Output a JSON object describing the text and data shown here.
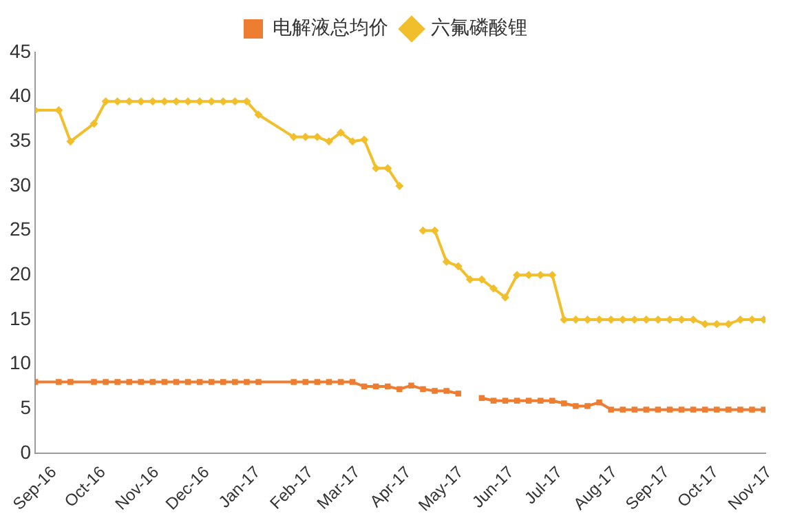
{
  "chart_data": {
    "type": "line",
    "legend": "top",
    "grid": false,
    "xlim": [
      "2016-09-01",
      "2017-11-10"
    ],
    "ylim": [
      0,
      45
    ],
    "yticks": [
      0,
      5,
      10,
      15,
      20,
      25,
      30,
      35,
      40,
      45
    ],
    "xticks": [
      {
        "value": "2016-09",
        "label": "Sep-16"
      },
      {
        "value": "2016-10",
        "label": "Oct-16"
      },
      {
        "value": "2016-11",
        "label": "Nov-16"
      },
      {
        "value": "2016-12",
        "label": "Dec-16"
      },
      {
        "value": "2017-01",
        "label": "Jan-17"
      },
      {
        "value": "2017-02",
        "label": "Feb-17"
      },
      {
        "value": "2017-03",
        "label": "Mar-17"
      },
      {
        "value": "2017-04",
        "label": "Apr-17"
      },
      {
        "value": "2017-05",
        "label": "May-17"
      },
      {
        "value": "2017-06",
        "label": "Jun-17"
      },
      {
        "value": "2017-07",
        "label": "Jul-17"
      },
      {
        "value": "2017-08",
        "label": "Aug-17"
      },
      {
        "value": "2017-09",
        "label": "Sep-17"
      },
      {
        "value": "2017-10",
        "label": "Oct-17"
      },
      {
        "value": "2017-11",
        "label": "Nov-17"
      }
    ],
    "series": [
      {
        "name": "电解液总均价",
        "color": "#ed7d31",
        "marker": "square",
        "x": [
          "2016-09-01",
          "2016-09-15",
          "2016-09-22",
          "2016-10-06",
          "2016-10-13",
          "2016-10-20",
          "2016-10-27",
          "2016-11-03",
          "2016-11-10",
          "2016-11-17",
          "2016-11-24",
          "2016-12-01",
          "2016-12-08",
          "2016-12-15",
          "2016-12-22",
          "2016-12-29",
          "2017-01-05",
          "2017-01-12",
          "2017-02-02",
          "2017-02-09",
          "2017-02-16",
          "2017-02-23",
          "2017-03-02",
          "2017-03-09",
          "2017-03-16",
          "2017-03-23",
          "2017-03-30",
          "2017-04-06",
          "2017-04-13",
          "2017-04-20",
          "2017-04-27",
          "2017-05-04",
          "2017-05-11",
          "2017-05-18",
          "2017-05-25",
          "2017-06-01",
          "2017-06-08",
          "2017-06-15",
          "2017-06-22",
          "2017-06-29",
          "2017-07-06",
          "2017-07-13",
          "2017-07-20",
          "2017-07-27",
          "2017-08-03",
          "2017-08-10",
          "2017-08-17",
          "2017-08-24",
          "2017-08-31",
          "2017-09-07",
          "2017-09-14",
          "2017-09-21",
          "2017-09-28",
          "2017-10-05",
          "2017-10-12",
          "2017-10-19",
          "2017-10-26",
          "2017-11-02",
          "2017-11-09"
        ],
        "values": [
          8,
          8,
          8,
          8,
          8,
          8,
          8,
          8,
          8,
          8,
          8,
          8,
          8,
          8,
          8,
          8,
          8,
          8,
          8,
          8,
          8,
          8,
          8,
          8,
          7.5,
          7.5,
          7.5,
          7.2,
          7.6,
          7.2,
          7.0,
          7.0,
          6.7,
          null,
          6.2,
          5.9,
          5.9,
          5.9,
          5.9,
          5.9,
          5.9,
          5.6,
          5.3,
          5.3,
          5.7,
          4.9,
          4.9,
          4.9,
          4.9,
          4.9,
          4.9,
          4.9,
          4.9,
          4.9,
          4.9,
          4.9,
          4.9,
          4.9,
          4.9
        ]
      },
      {
        "name": "六氟磷酸锂",
        "color": "#f2bf2c",
        "marker": "diamond",
        "x": [
          "2016-09-01",
          "2016-09-15",
          "2016-09-22",
          "2016-10-06",
          "2016-10-13",
          "2016-10-20",
          "2016-10-27",
          "2016-11-03",
          "2016-11-10",
          "2016-11-17",
          "2016-11-24",
          "2016-12-01",
          "2016-12-08",
          "2016-12-15",
          "2016-12-22",
          "2016-12-29",
          "2017-01-05",
          "2017-01-12",
          "2017-02-02",
          "2017-02-09",
          "2017-02-16",
          "2017-02-23",
          "2017-03-02",
          "2017-03-09",
          "2017-03-16",
          "2017-03-23",
          "2017-03-30",
          "2017-04-06",
          "2017-04-13",
          "2017-04-20",
          "2017-04-27",
          "2017-05-04",
          "2017-05-11",
          "2017-05-18",
          "2017-05-25",
          "2017-06-01",
          "2017-06-08",
          "2017-06-15",
          "2017-06-22",
          "2017-06-29",
          "2017-07-06",
          "2017-07-13",
          "2017-07-20",
          "2017-07-27",
          "2017-08-03",
          "2017-08-10",
          "2017-08-17",
          "2017-08-24",
          "2017-08-31",
          "2017-09-07",
          "2017-09-14",
          "2017-09-21",
          "2017-09-28",
          "2017-10-05",
          "2017-10-12",
          "2017-10-19",
          "2017-10-26",
          "2017-11-02",
          "2017-11-09"
        ],
        "values": [
          38.5,
          38.5,
          35,
          37,
          39.5,
          39.5,
          39.5,
          39.5,
          39.5,
          39.5,
          39.5,
          39.5,
          39.5,
          39.5,
          39.5,
          39.5,
          39.5,
          38,
          35.5,
          35.5,
          35.5,
          35,
          36,
          35,
          35.2,
          32,
          32,
          30,
          null,
          25,
          25,
          21.5,
          21,
          19.5,
          19.5,
          18.5,
          17.5,
          20,
          20,
          20,
          20,
          15,
          15,
          15,
          15,
          15,
          15,
          15,
          15,
          15,
          15,
          15,
          15,
          14.5,
          14.5,
          14.5,
          15,
          15,
          15
        ]
      }
    ]
  }
}
